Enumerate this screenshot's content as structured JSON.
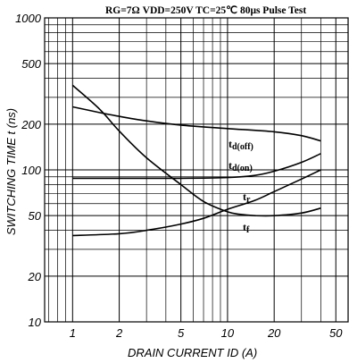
{
  "chart_data": {
    "type": "line",
    "conditions": "RG=7Ω  VDD=250V  TC=25℃  80μs Pulse Test",
    "xlabel": "DRAIN CURRENT  ID (A)",
    "ylabel": "SWITCHING TIME  t (ns)",
    "x_scale": "log",
    "y_scale": "log",
    "xlim": [
      0.66,
      60
    ],
    "ylim": [
      10,
      1000
    ],
    "grid": true,
    "x_ticks": [
      {
        "value": 1,
        "label": "1"
      },
      {
        "value": 2,
        "label": "2"
      },
      {
        "value": 5,
        "label": "5"
      },
      {
        "value": 10,
        "label": "10"
      },
      {
        "value": 20,
        "label": "20"
      },
      {
        "value": 50,
        "label": "50"
      }
    ],
    "y_ticks": [
      {
        "value": 10,
        "label": "10"
      },
      {
        "value": 20,
        "label": "20"
      },
      {
        "value": 50,
        "label": "50"
      },
      {
        "value": 100,
        "label": "100"
      },
      {
        "value": 200,
        "label": "200"
      },
      {
        "value": 500,
        "label": "500"
      },
      {
        "value": 1000,
        "label": "1000"
      }
    ],
    "series": [
      {
        "name": "td(off)",
        "label_main": "t",
        "label_sub": "d(off)",
        "x": [
          1,
          1.5,
          2,
          3,
          5,
          10,
          20,
          30,
          40
        ],
        "y": [
          260,
          238,
          225,
          210,
          197,
          187,
          178,
          168,
          155
        ]
      },
      {
        "name": "td(on)",
        "label_main": "t",
        "label_sub": "d(on)",
        "x": [
          1,
          2,
          5,
          10,
          15,
          20,
          30,
          40
        ],
        "y": [
          88,
          88,
          88,
          89,
          92,
          98,
          112,
          128
        ]
      },
      {
        "name": "tr",
        "label_main": "t",
        "label_sub": "r",
        "x": [
          1,
          2,
          3,
          5,
          7,
          10,
          15,
          20,
          30,
          40
        ],
        "y": [
          37,
          38,
          40,
          44,
          48,
          55,
          63,
          72,
          87,
          100
        ]
      },
      {
        "name": "tf",
        "label_main": "t",
        "label_sub": "f",
        "x": [
          1,
          1.5,
          2,
          3,
          5,
          7,
          10,
          12,
          15,
          20,
          30,
          40
        ],
        "y": [
          360,
          250,
          180,
          120,
          80,
          62,
          53,
          51,
          50,
          50,
          52,
          56
        ]
      }
    ]
  }
}
